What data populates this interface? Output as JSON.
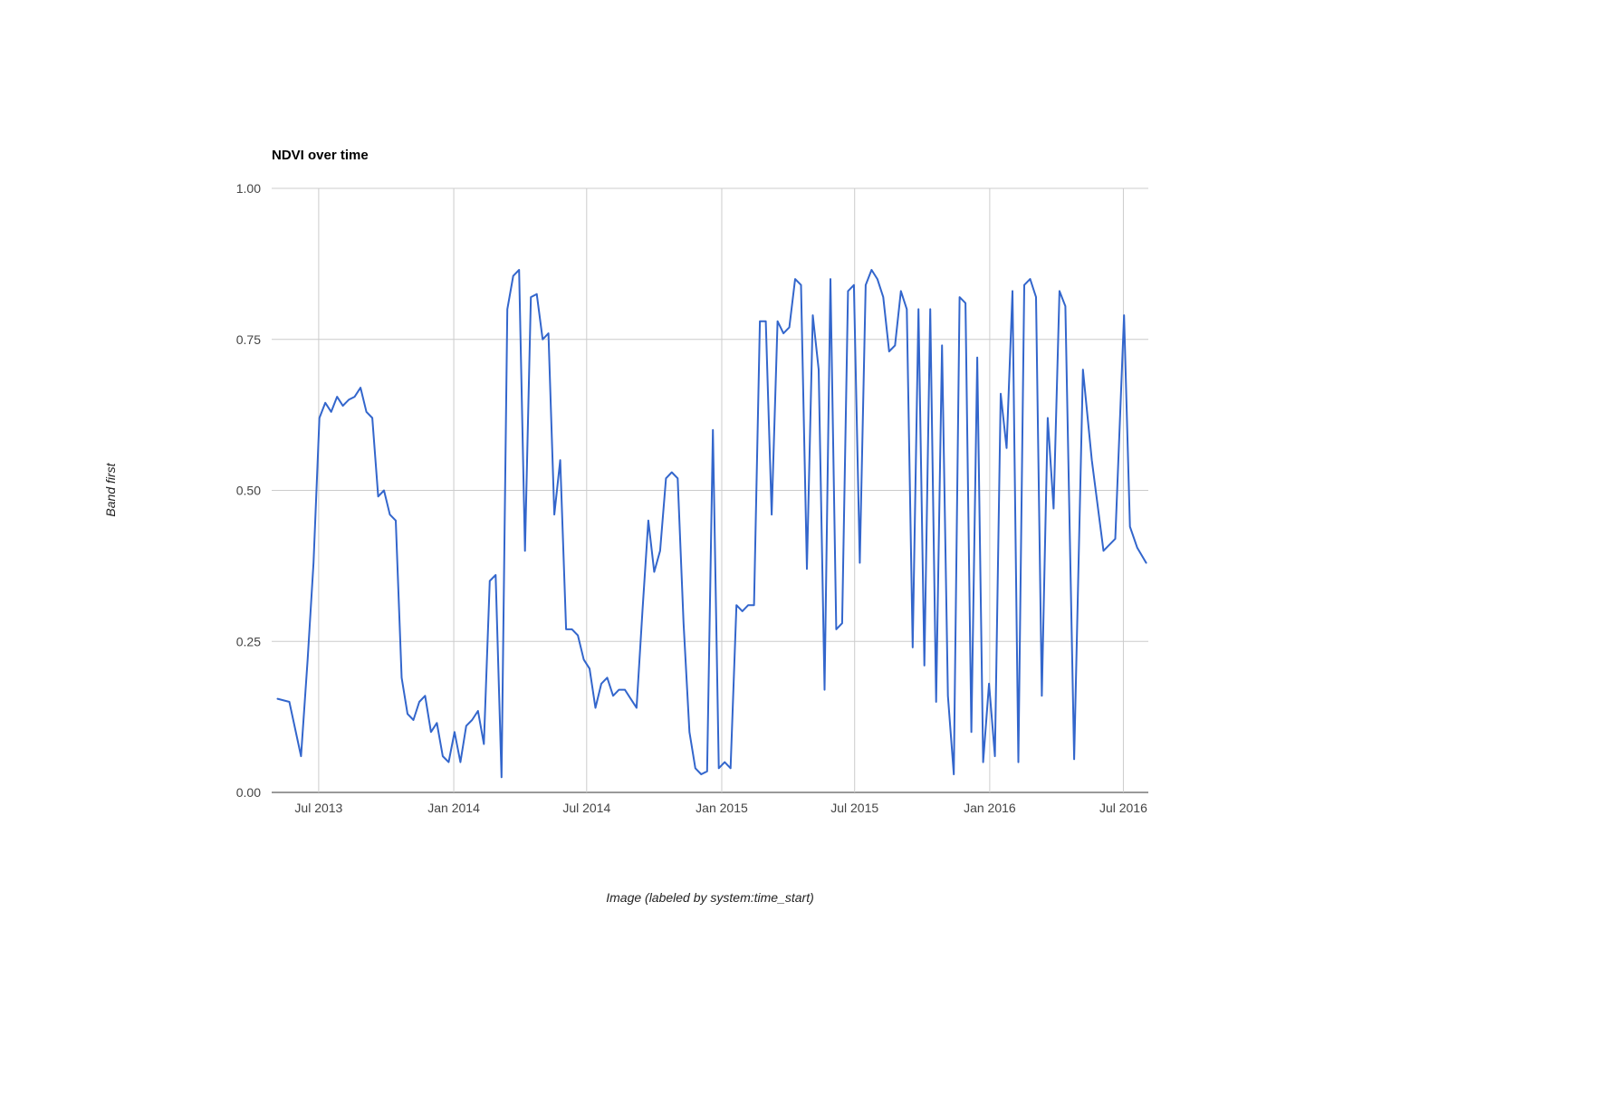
{
  "chart_data": {
    "type": "line",
    "title": "NDVI over time",
    "xlabel": "Image (labeled by system:time_start)",
    "ylabel": "Band first",
    "line_color": "#3366cc",
    "grid_color": "#cccccc",
    "baseline_color": "#333333",
    "tick_label_color": "#444444",
    "ylim": [
      0,
      1
    ],
    "x_domain": [
      "2013-04-28",
      "2016-08-04"
    ],
    "yticks": [
      {
        "v": 0.0,
        "label": "0.00"
      },
      {
        "v": 0.25,
        "label": "0.25"
      },
      {
        "v": 0.5,
        "label": "0.50"
      },
      {
        "v": 0.75,
        "label": "0.75"
      },
      {
        "v": 1.0,
        "label": "1.00"
      }
    ],
    "xticks": [
      {
        "date": "2013-07-01",
        "label": "Jul 2013"
      },
      {
        "date": "2014-01-01",
        "label": "Jan 2014"
      },
      {
        "date": "2014-07-01",
        "label": "Jul 2014"
      },
      {
        "date": "2015-01-01",
        "label": "Jan 2015"
      },
      {
        "date": "2015-07-01",
        "label": "Jul 2015"
      },
      {
        "date": "2016-01-01",
        "label": "Jan 2016"
      },
      {
        "date": "2016-07-01",
        "label": "Jul 2016"
      }
    ],
    "points": [
      [
        "2013-05-06",
        0.155
      ],
      [
        "2013-05-22",
        0.15
      ],
      [
        "2013-06-07",
        0.06
      ],
      [
        "2013-06-16",
        0.22
      ],
      [
        "2013-06-24",
        0.38
      ],
      [
        "2013-07-02",
        0.62
      ],
      [
        "2013-07-10",
        0.645
      ],
      [
        "2013-07-18",
        0.63
      ],
      [
        "2013-07-26",
        0.655
      ],
      [
        "2013-08-03",
        0.64
      ],
      [
        "2013-08-11",
        0.65
      ],
      [
        "2013-08-19",
        0.655
      ],
      [
        "2013-08-27",
        0.67
      ],
      [
        "2013-09-04",
        0.63
      ],
      [
        "2013-09-12",
        0.62
      ],
      [
        "2013-09-20",
        0.49
      ],
      [
        "2013-09-28",
        0.5
      ],
      [
        "2013-10-06",
        0.46
      ],
      [
        "2013-10-14",
        0.45
      ],
      [
        "2013-10-22",
        0.19
      ],
      [
        "2013-10-30",
        0.13
      ],
      [
        "2013-11-07",
        0.12
      ],
      [
        "2013-11-15",
        0.15
      ],
      [
        "2013-11-23",
        0.16
      ],
      [
        "2013-12-01",
        0.1
      ],
      [
        "2013-12-09",
        0.115
      ],
      [
        "2013-12-17",
        0.06
      ],
      [
        "2013-12-25",
        0.05
      ],
      [
        "2014-01-02",
        0.1
      ],
      [
        "2014-01-10",
        0.05
      ],
      [
        "2014-01-18",
        0.11
      ],
      [
        "2014-01-26",
        0.12
      ],
      [
        "2014-02-03",
        0.135
      ],
      [
        "2014-02-11",
        0.08
      ],
      [
        "2014-02-19",
        0.35
      ],
      [
        "2014-02-27",
        0.36
      ],
      [
        "2014-03-07",
        0.025
      ],
      [
        "2014-03-15",
        0.8
      ],
      [
        "2014-03-23",
        0.855
      ],
      [
        "2014-03-31",
        0.865
      ],
      [
        "2014-04-08",
        0.4
      ],
      [
        "2014-04-16",
        0.82
      ],
      [
        "2014-04-24",
        0.825
      ],
      [
        "2014-05-02",
        0.75
      ],
      [
        "2014-05-10",
        0.76
      ],
      [
        "2014-05-18",
        0.46
      ],
      [
        "2014-05-26",
        0.55
      ],
      [
        "2014-06-03",
        0.27
      ],
      [
        "2014-06-11",
        0.27
      ],
      [
        "2014-06-19",
        0.26
      ],
      [
        "2014-06-27",
        0.22
      ],
      [
        "2014-07-05",
        0.205
      ],
      [
        "2014-07-13",
        0.14
      ],
      [
        "2014-07-21",
        0.18
      ],
      [
        "2014-07-29",
        0.19
      ],
      [
        "2014-08-06",
        0.16
      ],
      [
        "2014-08-14",
        0.17
      ],
      [
        "2014-08-22",
        0.17
      ],
      [
        "2014-08-30",
        0.155
      ],
      [
        "2014-09-07",
        0.14
      ],
      [
        "2014-09-15",
        0.3
      ],
      [
        "2014-09-23",
        0.45
      ],
      [
        "2014-10-01",
        0.365
      ],
      [
        "2014-10-09",
        0.4
      ],
      [
        "2014-10-17",
        0.52
      ],
      [
        "2014-10-25",
        0.53
      ],
      [
        "2014-11-02",
        0.52
      ],
      [
        "2014-11-10",
        0.28
      ],
      [
        "2014-11-18",
        0.1
      ],
      [
        "2014-11-26",
        0.04
      ],
      [
        "2014-12-04",
        0.03
      ],
      [
        "2014-12-12",
        0.035
      ],
      [
        "2014-12-20",
        0.6
      ],
      [
        "2014-12-28",
        0.04
      ],
      [
        "2015-01-05",
        0.05
      ],
      [
        "2015-01-13",
        0.04
      ],
      [
        "2015-01-21",
        0.31
      ],
      [
        "2015-01-29",
        0.3
      ],
      [
        "2015-02-06",
        0.31
      ],
      [
        "2015-02-14",
        0.31
      ],
      [
        "2015-02-22",
        0.78
      ],
      [
        "2015-03-02",
        0.78
      ],
      [
        "2015-03-10",
        0.46
      ],
      [
        "2015-03-18",
        0.78
      ],
      [
        "2015-03-26",
        0.76
      ],
      [
        "2015-04-03",
        0.77
      ],
      [
        "2015-04-11",
        0.85
      ],
      [
        "2015-04-19",
        0.84
      ],
      [
        "2015-04-27",
        0.37
      ],
      [
        "2015-05-05",
        0.79
      ],
      [
        "2015-05-13",
        0.7
      ],
      [
        "2015-05-21",
        0.17
      ],
      [
        "2015-05-29",
        0.85
      ],
      [
        "2015-06-06",
        0.27
      ],
      [
        "2015-06-14",
        0.28
      ],
      [
        "2015-06-22",
        0.83
      ],
      [
        "2015-06-30",
        0.84
      ],
      [
        "2015-07-08",
        0.38
      ],
      [
        "2015-07-16",
        0.84
      ],
      [
        "2015-07-24",
        0.865
      ],
      [
        "2015-08-01",
        0.85
      ],
      [
        "2015-08-09",
        0.82
      ],
      [
        "2015-08-17",
        0.73
      ],
      [
        "2015-08-25",
        0.74
      ],
      [
        "2015-09-02",
        0.83
      ],
      [
        "2015-09-10",
        0.8
      ],
      [
        "2015-09-18",
        0.24
      ],
      [
        "2015-09-26",
        0.8
      ],
      [
        "2015-10-04",
        0.21
      ],
      [
        "2015-10-12",
        0.8
      ],
      [
        "2015-10-20",
        0.15
      ],
      [
        "2015-10-28",
        0.74
      ],
      [
        "2015-11-05",
        0.16
      ],
      [
        "2015-11-13",
        0.03
      ],
      [
        "2015-11-21",
        0.82
      ],
      [
        "2015-11-29",
        0.81
      ],
      [
        "2015-12-07",
        0.1
      ],
      [
        "2015-12-15",
        0.72
      ],
      [
        "2015-12-23",
        0.05
      ],
      [
        "2015-12-31",
        0.18
      ],
      [
        "2016-01-08",
        0.06
      ],
      [
        "2016-01-16",
        0.66
      ],
      [
        "2016-01-24",
        0.57
      ],
      [
        "2016-02-01",
        0.83
      ],
      [
        "2016-02-09",
        0.05
      ],
      [
        "2016-02-17",
        0.84
      ],
      [
        "2016-02-25",
        0.85
      ],
      [
        "2016-03-04",
        0.82
      ],
      [
        "2016-03-12",
        0.16
      ],
      [
        "2016-03-20",
        0.62
      ],
      [
        "2016-03-28",
        0.47
      ],
      [
        "2016-04-05",
        0.83
      ],
      [
        "2016-04-13",
        0.805
      ],
      [
        "2016-04-25",
        0.055
      ],
      [
        "2016-05-07",
        0.7
      ],
      [
        "2016-05-19",
        0.55
      ],
      [
        "2016-06-04",
        0.4
      ],
      [
        "2016-06-20",
        0.42
      ],
      [
        "2016-07-02",
        0.79
      ],
      [
        "2016-07-10",
        0.44
      ],
      [
        "2016-07-20",
        0.405
      ],
      [
        "2016-08-01",
        0.38
      ]
    ]
  }
}
